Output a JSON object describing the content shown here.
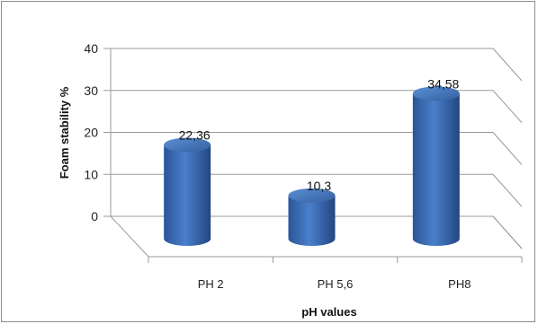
{
  "chart_data": {
    "type": "bar",
    "title": "",
    "xlabel": "pH values",
    "ylabel": "Foam stability %",
    "categories": [
      "PH 2",
      "PH 5,6",
      "PH8"
    ],
    "values": [
      22.36,
      10.3,
      34.58
    ],
    "data_labels": [
      "22,36",
      "10,3",
      "34,58"
    ],
    "ylim": [
      0,
      40
    ],
    "yticks": [
      "0",
      "10",
      "20",
      "30",
      "40"
    ],
    "grid": true,
    "legend": "none",
    "bar_color": "#3a6cb8"
  }
}
